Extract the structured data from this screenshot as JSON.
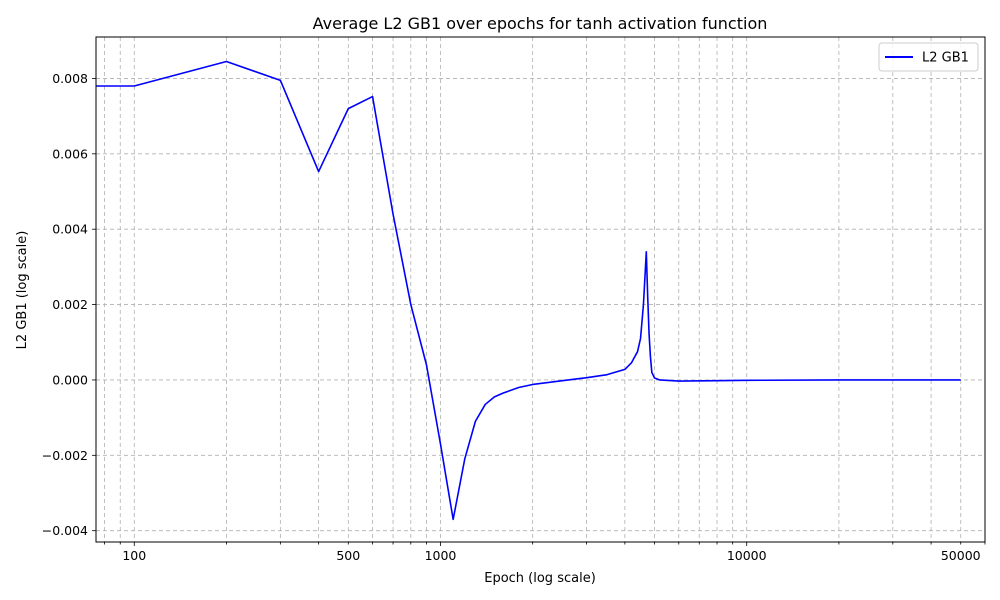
{
  "chart_data": {
    "type": "line",
    "title": "Average L2 GB1 over epochs for tanh activation function",
    "xlabel": "Epoch (log scale)",
    "ylabel": "L2 GB1 (log scale)",
    "x_scale": "log",
    "xlim": [
      75,
      60000
    ],
    "ylim": [
      -0.0043,
      0.0091
    ],
    "grid": true,
    "grid_style": "dashed",
    "legend_position": "top-right",
    "x_ticks": [
      {
        "value": 100,
        "label": "100"
      },
      {
        "value": 500,
        "label": "500"
      },
      {
        "value": 1000,
        "label": "1000"
      },
      {
        "value": 10000,
        "label": "10000"
      },
      {
        "value": 50000,
        "label": "50000"
      }
    ],
    "y_ticks": [
      {
        "value": -0.004,
        "label": "−0.004"
      },
      {
        "value": -0.002,
        "label": "−0.002"
      },
      {
        "value": 0.0,
        "label": "0.000"
      },
      {
        "value": 0.002,
        "label": "0.002"
      },
      {
        "value": 0.004,
        "label": "0.004"
      },
      {
        "value": 0.006,
        "label": "0.006"
      },
      {
        "value": 0.008,
        "label": "0.008"
      }
    ],
    "series": [
      {
        "name": "L2 GB1",
        "color": "#0000ff",
        "x": [
          75,
          100,
          200,
          300,
          400,
          500,
          600,
          700,
          800,
          900,
          1000,
          1100,
          1200,
          1300,
          1400,
          1500,
          1600,
          1800,
          2000,
          2500,
          3000,
          3500,
          4000,
          4200,
          4400,
          4500,
          4600,
          4700,
          4750,
          4800,
          4850,
          4900,
          5000,
          5200,
          6000,
          8000,
          10000,
          20000,
          50000
        ],
        "y": [
          0.0078,
          0.0078,
          0.00845,
          0.00795,
          0.00553,
          0.0072,
          0.00752,
          0.0044,
          0.002,
          0.0004,
          -0.0017,
          -0.0037,
          -0.0021,
          -0.0011,
          -0.00065,
          -0.00045,
          -0.00035,
          -0.0002,
          -0.00012,
          -2e-05,
          6e-05,
          0.00014,
          0.00028,
          0.00045,
          0.00075,
          0.0011,
          0.002,
          0.0034,
          0.0022,
          0.0012,
          0.0006,
          0.0002,
          5e-05,
          0.0,
          -3e-05,
          -2e-05,
          -1e-05,
          0.0,
          0.0
        ]
      }
    ]
  }
}
